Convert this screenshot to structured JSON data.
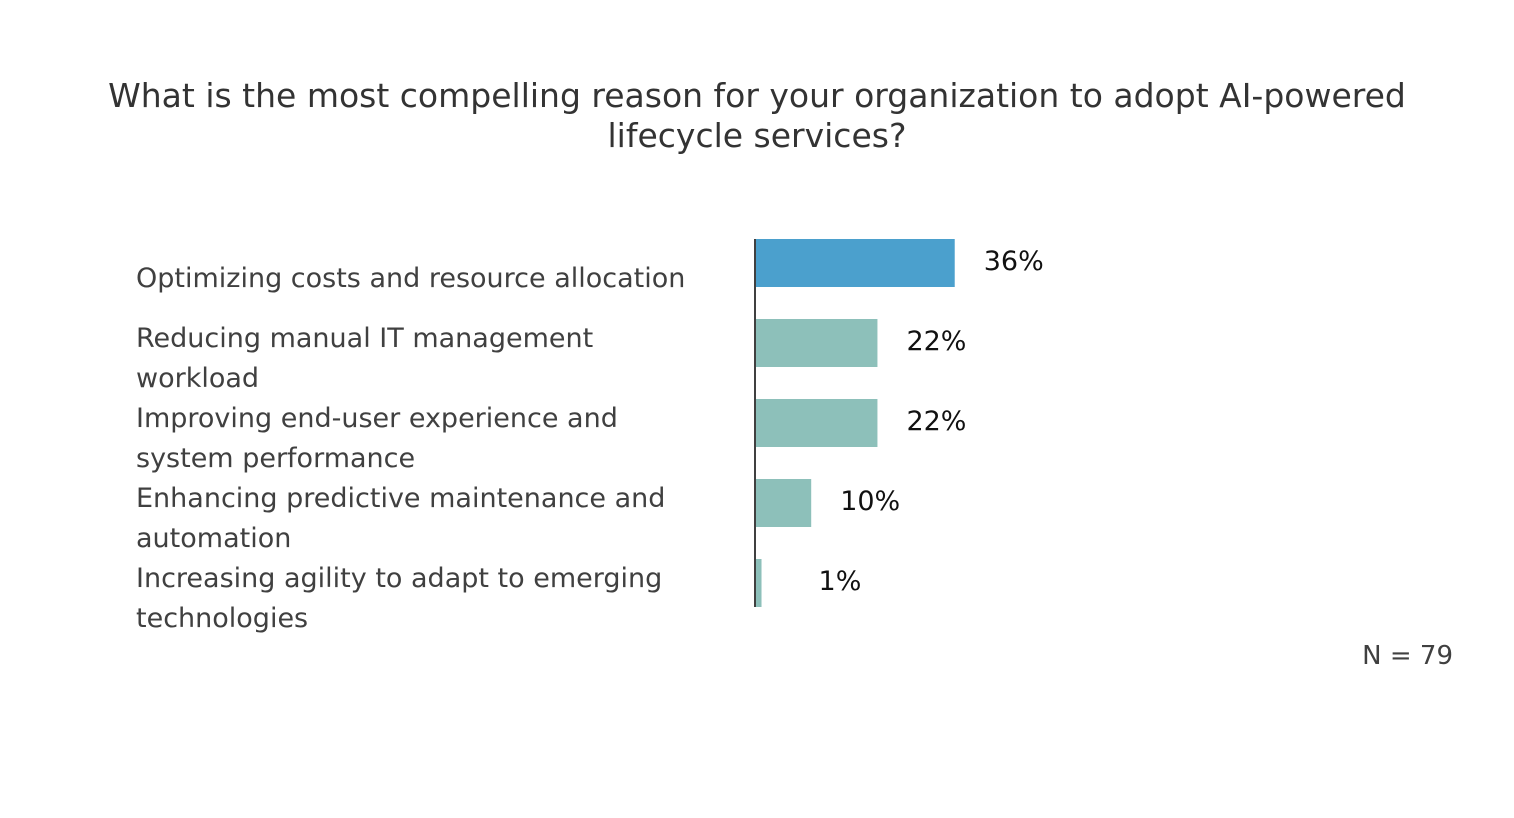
{
  "chart_data": {
    "type": "bar",
    "orientation": "horizontal",
    "title": "What is the most compelling reason for your organization to adopt AI-powered lifecycle services?",
    "categories": [
      "Optimizing costs and resource allocation",
      "Reducing manual IT management workload",
      "Improving end-user experience and system performance",
      "Enhancing predictive maintenance and automation",
      "Increasing agility to adapt to emerging technologies"
    ],
    "values": [
      36,
      22,
      22,
      10,
      1
    ],
    "data_labels": [
      "36%",
      "22%",
      "22%",
      "10%",
      "1%"
    ],
    "unit": "%",
    "xlim": [
      0,
      100
    ],
    "grid": false,
    "colors": {
      "highlight": "#4BA0CD",
      "default": "#8DC0BA",
      "axis": "#000000"
    },
    "highlight_index": 0,
    "note": "N = 79"
  }
}
